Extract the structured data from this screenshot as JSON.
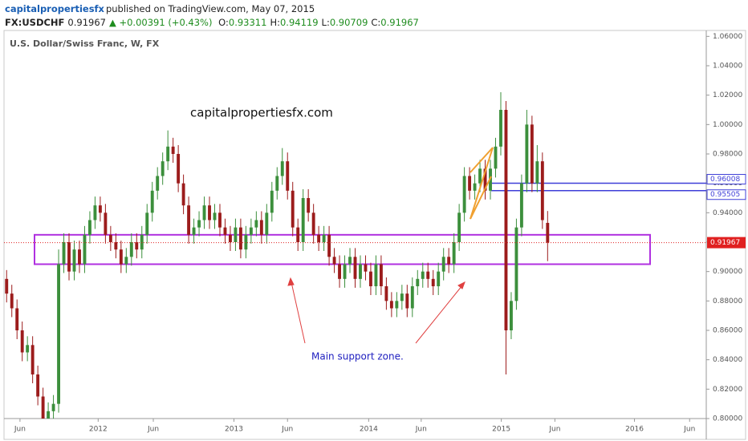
{
  "header": {
    "publisher": "capitalpropertiesfx",
    "published_text": "published on TradingView.com, May 07, 2015",
    "symbol": "FX:USDCHF",
    "price": "0.91967",
    "change": "▲ +0.00391 (+0.43%)",
    "ohlc": [
      {
        "label": "O:",
        "value": "0.93311"
      },
      {
        "label": "H:",
        "value": "0.94119"
      },
      {
        "label": "L:",
        "value": "0.90709"
      },
      {
        "label": "C:",
        "value": "0.91967"
      }
    ]
  },
  "chart_data": {
    "type": "candlestick",
    "title": "U.S. Dollar/Swiss Franc, W, FX",
    "watermark": "capitalpropertiesfx.com",
    "annotation": "Main support zone.",
    "up_color": "#3c8f3c",
    "down_color": "#9c1c1c",
    "ylim": [
      0.8,
      1.064
    ],
    "yticks": [
      {
        "value": 0.8,
        "label": "0.80000"
      },
      {
        "value": 0.82,
        "label": "0.82000"
      },
      {
        "value": 0.84,
        "label": "0.84000"
      },
      {
        "value": 0.86,
        "label": "0.86000"
      },
      {
        "value": 0.88,
        "label": "0.88000"
      },
      {
        "value": 0.9,
        "label": "0.90000"
      },
      {
        "value": 0.92,
        "label": "0.92000"
      },
      {
        "value": 0.94,
        "label": "0.94000"
      },
      {
        "value": 0.96,
        "label": "0.96000"
      },
      {
        "value": 0.98,
        "label": "0.98000"
      },
      {
        "value": 1.0,
        "label": "1.00000"
      },
      {
        "value": 1.02,
        "label": "1.02000"
      },
      {
        "value": 1.04,
        "label": "1.04000"
      },
      {
        "value": 1.06,
        "label": "1.06000"
      }
    ],
    "xlim": [
      0,
      135
    ],
    "xticks": [
      {
        "value": 3.07,
        "label": "Jun"
      },
      {
        "value": 18.1,
        "label": "2012"
      },
      {
        "value": 28.7,
        "label": "Jun"
      },
      {
        "value": 44.2,
        "label": "2013"
      },
      {
        "value": 54.5,
        "label": "Jun"
      },
      {
        "value": 70.1,
        "label": "2014"
      },
      {
        "value": 80.2,
        "label": "Jun"
      },
      {
        "value": 95.6,
        "label": "2015"
      },
      {
        "value": 105.9,
        "label": "Jun"
      },
      {
        "value": 121.2,
        "label": "2016"
      },
      {
        "value": 131.8,
        "label": "Jun"
      }
    ],
    "support_zone": [
      0.905,
      0.925
    ],
    "levels": [
      {
        "value": 0.96008,
        "color": "#3f3fd8"
      },
      {
        "value": 0.95505,
        "color": "#3f3fd8"
      }
    ],
    "last_price": 0.91967,
    "last_color": "#e02020",
    "ohlc": [
      [
        0.895,
        0.901,
        0.879,
        0.885
      ],
      [
        0.885,
        0.891,
        0.869,
        0.875
      ],
      [
        0.875,
        0.881,
        0.854,
        0.86
      ],
      [
        0.86,
        0.866,
        0.839,
        0.845
      ],
      [
        0.845,
        0.856,
        0.839,
        0.85
      ],
      [
        0.85,
        0.856,
        0.824,
        0.83
      ],
      [
        0.83,
        0.836,
        0.809,
        0.815
      ],
      [
        0.815,
        0.821,
        0.794,
        0.8
      ],
      [
        0.8,
        0.811,
        0.794,
        0.805
      ],
      [
        0.805,
        0.816,
        0.799,
        0.81
      ],
      [
        0.81,
        0.915,
        0.804,
        0.905
      ],
      [
        0.905,
        0.926,
        0.899,
        0.92
      ],
      [
        0.92,
        0.926,
        0.894,
        0.9
      ],
      [
        0.9,
        0.921,
        0.894,
        0.915
      ],
      [
        0.915,
        0.921,
        0.899,
        0.905
      ],
      [
        0.905,
        0.931,
        0.899,
        0.925
      ],
      [
        0.925,
        0.941,
        0.919,
        0.935
      ],
      [
        0.935,
        0.951,
        0.929,
        0.945
      ],
      [
        0.945,
        0.951,
        0.934,
        0.94
      ],
      [
        0.94,
        0.946,
        0.919,
        0.925
      ],
      [
        0.925,
        0.931,
        0.914,
        0.92
      ],
      [
        0.92,
        0.926,
        0.909,
        0.915
      ],
      [
        0.915,
        0.921,
        0.899,
        0.905
      ],
      [
        0.905,
        0.916,
        0.899,
        0.91
      ],
      [
        0.91,
        0.926,
        0.904,
        0.92
      ],
      [
        0.92,
        0.926,
        0.909,
        0.915
      ],
      [
        0.915,
        0.931,
        0.909,
        0.925
      ],
      [
        0.925,
        0.946,
        0.919,
        0.94
      ],
      [
        0.94,
        0.961,
        0.934,
        0.955
      ],
      [
        0.955,
        0.971,
        0.949,
        0.965
      ],
      [
        0.965,
        0.981,
        0.959,
        0.975
      ],
      [
        0.975,
        0.996,
        0.969,
        0.985
      ],
      [
        0.985,
        0.991,
        0.974,
        0.98
      ],
      [
        0.98,
        0.986,
        0.954,
        0.96
      ],
      [
        0.96,
        0.966,
        0.939,
        0.945
      ],
      [
        0.945,
        0.951,
        0.919,
        0.925
      ],
      [
        0.925,
        0.936,
        0.919,
        0.93
      ],
      [
        0.93,
        0.941,
        0.924,
        0.935
      ],
      [
        0.935,
        0.951,
        0.929,
        0.945
      ],
      [
        0.945,
        0.951,
        0.929,
        0.935
      ],
      [
        0.935,
        0.946,
        0.929,
        0.94
      ],
      [
        0.94,
        0.946,
        0.924,
        0.93
      ],
      [
        0.93,
        0.936,
        0.919,
        0.925
      ],
      [
        0.925,
        0.931,
        0.914,
        0.92
      ],
      [
        0.92,
        0.936,
        0.914,
        0.93
      ],
      [
        0.93,
        0.936,
        0.909,
        0.915
      ],
      [
        0.915,
        0.931,
        0.909,
        0.925
      ],
      [
        0.925,
        0.936,
        0.919,
        0.93
      ],
      [
        0.93,
        0.941,
        0.924,
        0.935
      ],
      [
        0.935,
        0.941,
        0.919,
        0.925
      ],
      [
        0.925,
        0.946,
        0.919,
        0.94
      ],
      [
        0.94,
        0.961,
        0.934,
        0.955
      ],
      [
        0.955,
        0.971,
        0.949,
        0.965
      ],
      [
        0.965,
        0.984,
        0.959,
        0.975
      ],
      [
        0.975,
        0.981,
        0.949,
        0.955
      ],
      [
        0.955,
        0.961,
        0.924,
        0.93
      ],
      [
        0.93,
        0.936,
        0.914,
        0.92
      ],
      [
        0.92,
        0.956,
        0.914,
        0.95
      ],
      [
        0.95,
        0.956,
        0.934,
        0.94
      ],
      [
        0.94,
        0.946,
        0.919,
        0.925
      ],
      [
        0.925,
        0.931,
        0.914,
        0.92
      ],
      [
        0.92,
        0.931,
        0.914,
        0.925
      ],
      [
        0.925,
        0.931,
        0.904,
        0.91
      ],
      [
        0.91,
        0.916,
        0.899,
        0.905
      ],
      [
        0.905,
        0.911,
        0.889,
        0.895
      ],
      [
        0.895,
        0.911,
        0.889,
        0.905
      ],
      [
        0.905,
        0.916,
        0.899,
        0.91
      ],
      [
        0.91,
        0.916,
        0.889,
        0.895
      ],
      [
        0.895,
        0.911,
        0.889,
        0.905
      ],
      [
        0.905,
        0.911,
        0.894,
        0.9
      ],
      [
        0.9,
        0.906,
        0.884,
        0.89
      ],
      [
        0.89,
        0.911,
        0.884,
        0.905
      ],
      [
        0.905,
        0.911,
        0.884,
        0.89
      ],
      [
        0.89,
        0.896,
        0.874,
        0.88
      ],
      [
        0.88,
        0.886,
        0.869,
        0.875
      ],
      [
        0.875,
        0.886,
        0.869,
        0.88
      ],
      [
        0.88,
        0.891,
        0.874,
        0.885
      ],
      [
        0.885,
        0.891,
        0.869,
        0.875
      ],
      [
        0.875,
        0.896,
        0.869,
        0.89
      ],
      [
        0.89,
        0.901,
        0.884,
        0.895
      ],
      [
        0.895,
        0.906,
        0.889,
        0.9
      ],
      [
        0.9,
        0.906,
        0.889,
        0.895
      ],
      [
        0.895,
        0.901,
        0.884,
        0.89
      ],
      [
        0.89,
        0.906,
        0.884,
        0.9
      ],
      [
        0.9,
        0.916,
        0.894,
        0.91
      ],
      [
        0.91,
        0.916,
        0.899,
        0.905
      ],
      [
        0.905,
        0.926,
        0.899,
        0.92
      ],
      [
        0.92,
        0.946,
        0.914,
        0.94
      ],
      [
        0.94,
        0.971,
        0.934,
        0.965
      ],
      [
        0.965,
        0.971,
        0.949,
        0.955
      ],
      [
        0.955,
        0.966,
        0.949,
        0.96
      ],
      [
        0.96,
        0.976,
        0.954,
        0.97
      ],
      [
        0.97,
        0.976,
        0.949,
        0.955
      ],
      [
        0.955,
        0.976,
        0.949,
        0.97
      ],
      [
        0.97,
        0.991,
        0.964,
        0.985
      ],
      [
        0.985,
        1.022,
        0.979,
        1.01
      ],
      [
        1.01,
        1.016,
        0.83,
        0.86
      ],
      [
        0.86,
        0.886,
        0.854,
        0.88
      ],
      [
        0.88,
        0.936,
        0.874,
        0.93
      ],
      [
        0.93,
        0.966,
        0.924,
        0.96
      ],
      [
        0.96,
        1.01,
        0.954,
        1.0
      ],
      [
        1.0,
        1.006,
        0.954,
        0.96
      ],
      [
        0.96,
        0.986,
        0.954,
        0.975
      ],
      [
        0.975,
        0.981,
        0.929,
        0.935
      ],
      [
        0.93311,
        0.94119,
        0.90709,
        0.91967
      ]
    ]
  }
}
